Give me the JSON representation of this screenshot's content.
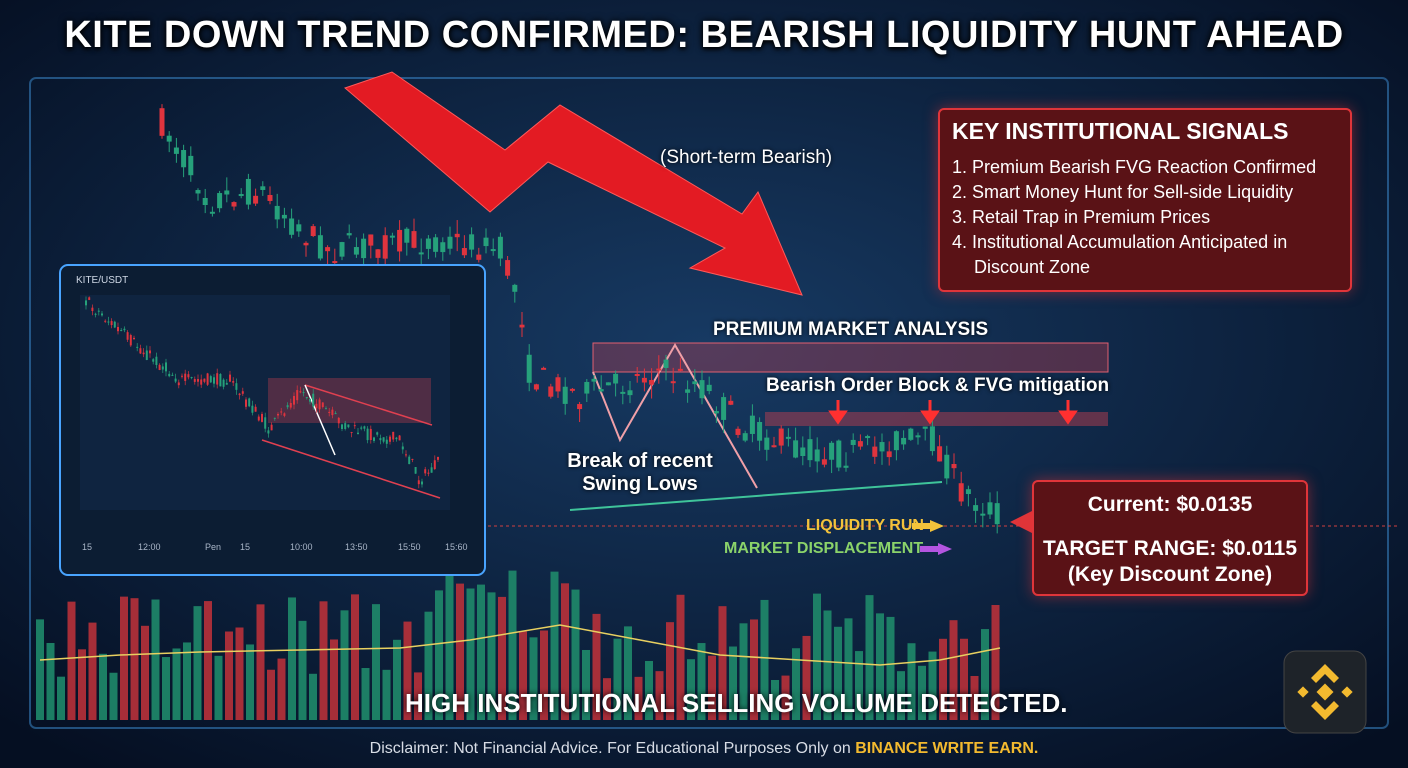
{
  "header": {
    "title": "KITE DOWN TREND CONFIRMED: BEARISH LIQUIDITY HUNT AHEAD"
  },
  "bias_note": "(Short-term Bearish)",
  "signals": {
    "title": "KEY INSTITUTIONAL SIGNALS",
    "items": [
      "1. Premium Bearish FVG Reaction Confirmed",
      "2. Smart Money Hunt for Sell-side Liquidity",
      "3. Retail Trap in Premium Prices",
      "4. Institutional Accumulation Anticipated in Discount Zone"
    ]
  },
  "annotations": {
    "premium": "PREMIUM MARKET ANALYSIS",
    "order_block": "Bearish Order Block & FVG mitigation",
    "swing": "Break of recent Swing Lows",
    "liquidity_run": "LIQUIDITY RUN",
    "displacement": "MARKET DISPLACEMENT",
    "volume": "HIGH INSTITUTIONAL SELLING VOLUME DETECTED."
  },
  "price_box": {
    "current": "Current: $0.0135",
    "target": "TARGET RANGE: $0.0115",
    "zone": "(Key Discount Zone)"
  },
  "inset": {
    "pair": "KITE/USDT",
    "x_labels": [
      "15",
      "12:00",
      "Pen",
      "15",
      "10:00",
      "13:50",
      "15:50",
      "15:60"
    ]
  },
  "footer": {
    "disclaimer": "Disclaimer: Not Financial Advice. For Educational Purposes Only on",
    "brand": "BINANCE WRITE EARN."
  }
}
